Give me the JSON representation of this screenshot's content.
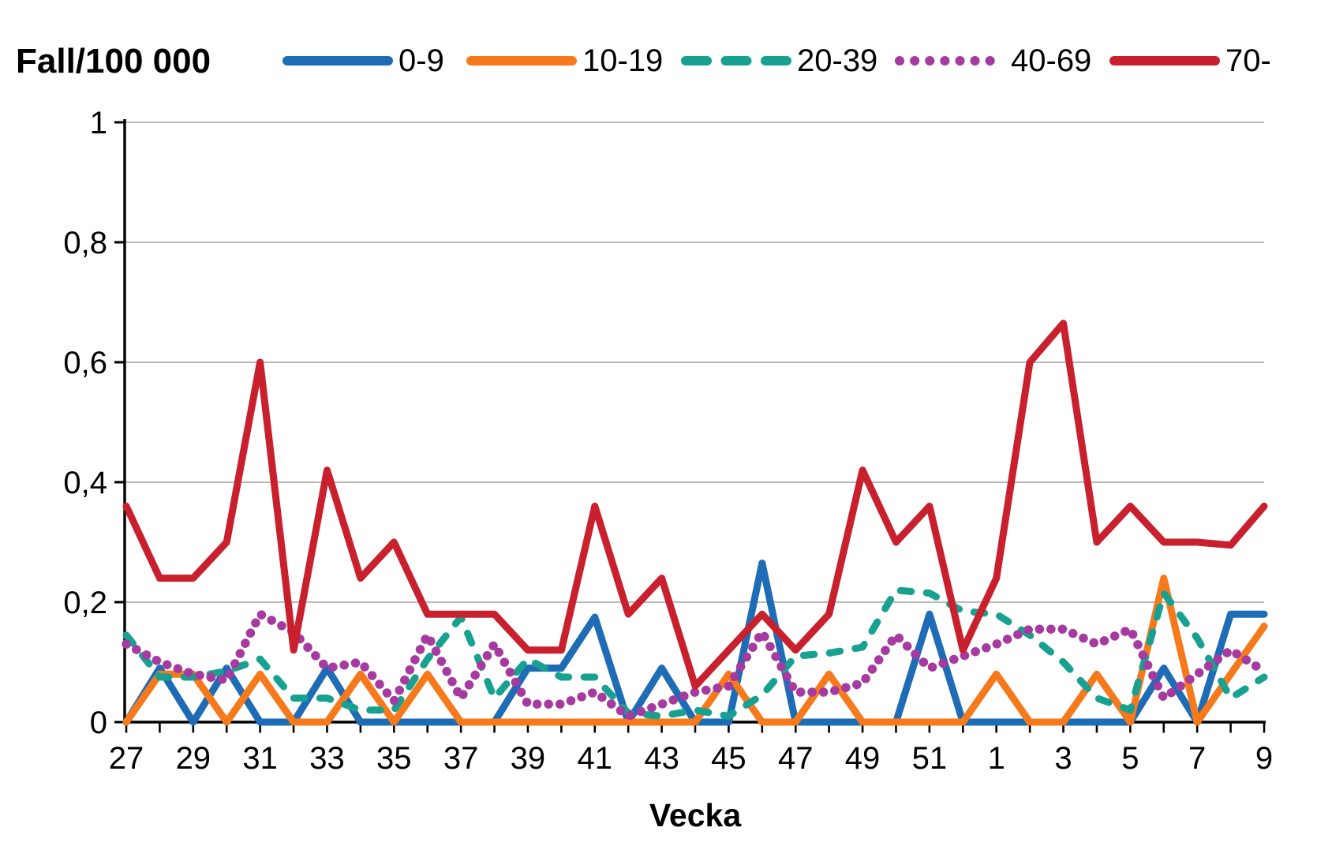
{
  "chart_data": {
    "type": "line",
    "title": "Fall/100 000",
    "xlabel": "Vecka",
    "ylabel": "",
    "ylim": [
      0,
      1
    ],
    "yticks": [
      0,
      0.2,
      0.4,
      0.6,
      0.8,
      1
    ],
    "ytick_labels": [
      "0",
      "0,2",
      "0,4",
      "0,6",
      "0,8",
      "1"
    ],
    "categories": [
      27,
      28,
      29,
      30,
      31,
      32,
      33,
      34,
      35,
      36,
      37,
      38,
      39,
      40,
      41,
      42,
      43,
      44,
      45,
      46,
      47,
      48,
      49,
      50,
      51,
      52,
      1,
      2,
      3,
      4,
      5,
      6,
      7,
      8,
      9
    ],
    "xtick_labels_shown": [
      "27",
      "29",
      "31",
      "33",
      "35",
      "37",
      "39",
      "41",
      "43",
      "45",
      "47",
      "49",
      "51",
      "1",
      "3",
      "5",
      "7",
      "9"
    ],
    "grid": "horizontal",
    "legend_position": "top",
    "background_color": "#FFFFFF",
    "axis_color": "#000000",
    "grid_color": "#A6A6A6",
    "text_color": "#000000",
    "series": [
      {
        "name": "0-9",
        "color": "#1E6CB5",
        "style": "solid",
        "values": [
          0,
          0.09,
          0,
          0.09,
          0,
          0,
          0.09,
          0,
          0,
          0,
          0,
          0,
          0.09,
          0.09,
          0.175,
          0,
          0.09,
          0,
          0,
          0.265,
          0,
          0,
          0,
          0,
          0.18,
          0,
          0,
          0,
          0,
          0,
          0,
          0.09,
          0,
          0.18,
          0.18
        ]
      },
      {
        "name": "10-19",
        "color": "#F67A1C",
        "style": "solid",
        "values": [
          0,
          0.08,
          0.08,
          0,
          0.08,
          0,
          0,
          0.08,
          0,
          0.08,
          0,
          0,
          0,
          0,
          0,
          0,
          0,
          0,
          0.08,
          0,
          0,
          0.08,
          0,
          0,
          0,
          0,
          0.08,
          0,
          0,
          0.08,
          0,
          0.24,
          0,
          0.08,
          0.16
        ]
      },
      {
        "name": "20-39",
        "color": "#18A191",
        "style": "dashed",
        "values": [
          0.145,
          0.075,
          0.075,
          0.085,
          0.105,
          0.04,
          0.04,
          0.02,
          0.02,
          0.105,
          0.175,
          0.04,
          0.105,
          0.075,
          0.075,
          0.015,
          0.01,
          0.02,
          0.01,
          0.045,
          0.11,
          0.115,
          0.125,
          0.22,
          0.215,
          0.185,
          0.18,
          0.145,
          0.1,
          0.04,
          0.02,
          0.215,
          0.14,
          0.04,
          0.075
        ]
      },
      {
        "name": "40-69",
        "color": "#A63AA0",
        "style": "dotted",
        "values": [
          0.13,
          0.1,
          0.08,
          0.07,
          0.18,
          0.15,
          0.09,
          0.1,
          0.035,
          0.145,
          0.04,
          0.13,
          0.03,
          0.03,
          0.05,
          0.01,
          0.03,
          0.05,
          0.06,
          0.15,
          0.05,
          0.05,
          0.065,
          0.145,
          0.09,
          0.11,
          0.13,
          0.155,
          0.155,
          0.13,
          0.155,
          0.04,
          0.08,
          0.12,
          0.085
        ]
      },
      {
        "name": "70-",
        "color": "#C9202E",
        "style": "solid",
        "values": [
          0.36,
          0.24,
          0.24,
          0.3,
          0.6,
          0.12,
          0.42,
          0.24,
          0.3,
          0.18,
          0.18,
          0.18,
          0.12,
          0.12,
          0.36,
          0.18,
          0.24,
          0.06,
          0.12,
          0.18,
          0.12,
          0.18,
          0.42,
          0.3,
          0.36,
          0.12,
          0.24,
          0.6,
          0.665,
          0.3,
          0.36,
          0.3,
          0.3,
          0.295,
          0.36
        ]
      }
    ]
  }
}
